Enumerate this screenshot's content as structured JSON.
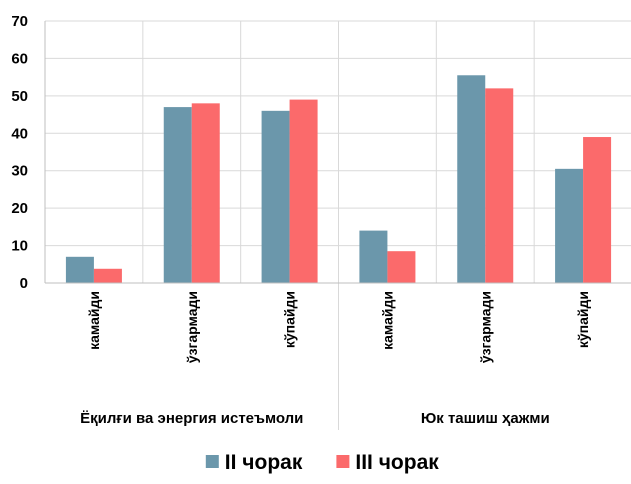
{
  "chart_data": {
    "type": "bar",
    "groups": [
      {
        "label": "Ёқилғи ва энергия истеъмоли",
        "categories": [
          "камайди",
          "ўзгармади",
          "кўпайди"
        ]
      },
      {
        "label": "Юк ташиш ҳажми",
        "categories": [
          "камайди",
          "ўзгармади",
          "кўпайди"
        ]
      }
    ],
    "series": [
      {
        "name": "II чорак",
        "color": "#6b97ab",
        "values": [
          7,
          47,
          46,
          14,
          55.5,
          30.5
        ]
      },
      {
        "name": "III чорак",
        "color": "#fb6a6b",
        "values": [
          3.8,
          48,
          49,
          8.5,
          52,
          39
        ]
      }
    ],
    "ylim": [
      0,
      70
    ],
    "yticks": [
      0,
      10,
      20,
      30,
      40,
      50,
      60,
      70
    ],
    "grid": true,
    "legend": "bottom"
  }
}
